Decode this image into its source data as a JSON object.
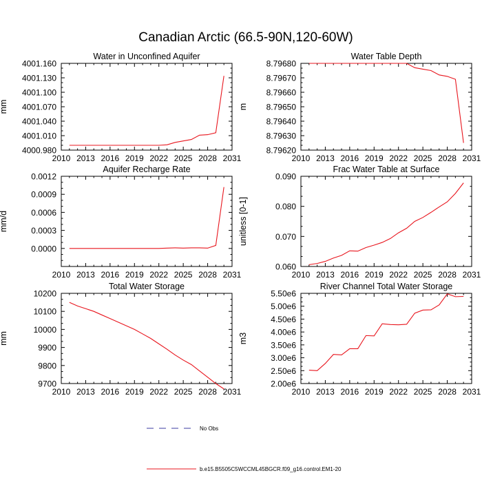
{
  "figure": {
    "title": "Canadian Arctic (66.5-90N,120-60W)"
  },
  "legend": {
    "entries": [
      {
        "label": "No Obs",
        "style": "dashed",
        "color": "#3a3aa0"
      },
      {
        "label": "b.e15.B5505C5WCCML45BGCR.f09_g16.control.EM1-20",
        "style": "solid",
        "color": "#e8141c"
      }
    ]
  },
  "chart_data": [
    {
      "type": "line",
      "title": "Water in Unconfined Aquifer",
      "xlabel": "",
      "ylabel": "mm",
      "xlim": [
        2010,
        2031
      ],
      "ylim": [
        4000.98,
        4001.16
      ],
      "xticks": [
        2010,
        2013,
        2016,
        2019,
        2022,
        2025,
        2028,
        2031
      ],
      "yticks": [
        4000.98,
        4001.01,
        4001.04,
        4001.07,
        4001.1,
        4001.13,
        4001.16
      ],
      "ytick_labels": [
        "4000.980",
        "4001.010",
        "4001.040",
        "4001.070",
        "4001.100",
        "4001.130",
        "4001.160"
      ],
      "series": [
        {
          "color": "#e8141c",
          "x": [
            2011,
            2012,
            2013,
            2014,
            2015,
            2016,
            2017,
            2018,
            2019,
            2020,
            2021,
            2022,
            2023,
            2024,
            2025,
            2026,
            2027,
            2028,
            2029,
            2030
          ],
          "y": [
            4000.99,
            4000.99,
            4000.99,
            4000.99,
            4000.99,
            4000.99,
            4000.99,
            4000.99,
            4000.99,
            4000.99,
            4000.99,
            4000.99,
            4000.991,
            4000.996,
            4000.999,
            4001.002,
            4001.011,
            4001.012,
            4001.016,
            4001.134
          ]
        }
      ]
    },
    {
      "type": "line",
      "title": "Water Table Depth",
      "xlabel": "",
      "ylabel": "m",
      "xlim": [
        2010,
        2031
      ],
      "ylim": [
        8.7962,
        8.7968
      ],
      "xticks": [
        2010,
        2013,
        2016,
        2019,
        2022,
        2025,
        2028,
        2031
      ],
      "yticks": [
        8.7962,
        8.7963,
        8.7964,
        8.7965,
        8.7966,
        8.7967,
        8.7968
      ],
      "ytick_labels": [
        "8.79620",
        "8.79630",
        "8.79640",
        "8.79650",
        "8.79660",
        "8.79670",
        "8.79680"
      ],
      "series": [
        {
          "color": "#e8141c",
          "x": [
            2011,
            2012,
            2013,
            2014,
            2015,
            2016,
            2017,
            2018,
            2019,
            2020,
            2021,
            2022,
            2023,
            2024,
            2025,
            2026,
            2027,
            2028,
            2029,
            2030
          ],
          "y": [
            8.7968,
            8.7968,
            8.7968,
            8.7968,
            8.7968,
            8.7968,
            8.7968,
            8.7968,
            8.7968,
            8.7968,
            8.7968,
            8.7968,
            8.7968,
            8.79677,
            8.79676,
            8.79675,
            8.79672,
            8.79671,
            8.79669,
            8.79625
          ]
        }
      ]
    },
    {
      "type": "line",
      "title": "Aquifer Recharge Rate",
      "xlabel": "",
      "ylabel": "mm/d",
      "xlim": [
        2010,
        2031
      ],
      "ylim": [
        -0.0003,
        0.0012
      ],
      "xticks": [
        2010,
        2013,
        2016,
        2019,
        2022,
        2025,
        2028,
        2031
      ],
      "yticks": [
        0,
        0.0003,
        0.0006,
        0.0009,
        0.0012
      ],
      "ytick_labels": [
        "0.0000",
        "0.0003",
        "0.0006",
        "0.0009",
        "0.0012"
      ],
      "series": [
        {
          "color": "#e8141c",
          "x": [
            2011,
            2012,
            2013,
            2014,
            2015,
            2016,
            2017,
            2018,
            2019,
            2020,
            2021,
            2022,
            2023,
            2024,
            2025,
            2026,
            2027,
            2028,
            2029,
            2030
          ],
          "y": [
            0,
            0,
            0,
            0,
            0,
            0,
            0,
            0,
            0,
            0,
            0,
            0,
            5e-06,
            1e-05,
            5e-06,
            1e-05,
            1e-05,
            5e-06,
            5e-05,
            0.00102
          ]
        }
      ]
    },
    {
      "type": "line",
      "title": "Frac Water Table at Surface",
      "xlabel": "",
      "ylabel": "unitless [0-1]",
      "xlim": [
        2010,
        2031
      ],
      "ylim": [
        0.06,
        0.09
      ],
      "xticks": [
        2010,
        2013,
        2016,
        2019,
        2022,
        2025,
        2028,
        2031
      ],
      "yticks": [
        0.06,
        0.07,
        0.08,
        0.09
      ],
      "ytick_labels": [
        "0.060",
        "0.070",
        "0.080",
        "0.090"
      ],
      "series": [
        {
          "color": "#e8141c",
          "x": [
            2011,
            2012,
            2013,
            2014,
            2015,
            2016,
            2017,
            2018,
            2019,
            2020,
            2021,
            2022,
            2023,
            2024,
            2025,
            2026,
            2027,
            2028,
            2029,
            2030
          ],
          "y": [
            0.0606,
            0.061,
            0.0617,
            0.0628,
            0.0637,
            0.0652,
            0.0651,
            0.0663,
            0.0671,
            0.068,
            0.0693,
            0.0712,
            0.0727,
            0.075,
            0.0763,
            0.078,
            0.0798,
            0.0815,
            0.0843,
            0.0878
          ]
        }
      ]
    },
    {
      "type": "line",
      "title": "Total Water Storage",
      "xlabel": "",
      "ylabel": "mm",
      "xlim": [
        2010,
        2031
      ],
      "ylim": [
        9700,
        10200
      ],
      "xticks": [
        2010,
        2013,
        2016,
        2019,
        2022,
        2025,
        2028,
        2031
      ],
      "yticks": [
        9700,
        9800,
        9900,
        10000,
        10100,
        10200
      ],
      "ytick_labels": [
        "9700",
        "9800",
        "9900",
        "10000",
        "10100",
        "10200"
      ],
      "series": [
        {
          "color": "#e8141c",
          "x": [
            2011,
            2012,
            2013,
            2014,
            2015,
            2016,
            2017,
            2018,
            2019,
            2020,
            2021,
            2022,
            2023,
            2024,
            2025,
            2026,
            2027,
            2028,
            2029,
            2030
          ],
          "y": [
            10150,
            10130,
            10115,
            10100,
            10080,
            10060,
            10040,
            10020,
            10000,
            9975,
            9950,
            9920,
            9890,
            9858,
            9830,
            9805,
            9770,
            9735,
            9700,
            9670
          ]
        }
      ]
    },
    {
      "type": "line",
      "title": "River Channel Total Water Storage",
      "xlabel": "",
      "ylabel": "m3",
      "xlim": [
        2010,
        2031
      ],
      "ylim": [
        2000000,
        5500000
      ],
      "xticks": [
        2010,
        2013,
        2016,
        2019,
        2022,
        2025,
        2028,
        2031
      ],
      "yticks": [
        2000000,
        2500000,
        3000000,
        3500000,
        4000000,
        4500000,
        5000000,
        5500000
      ],
      "ytick_labels": [
        "2.00e6",
        "2.50e6",
        "3.00e6",
        "3.50e6",
        "4.00e6",
        "4.50e6",
        "5.00e6",
        "5.50e6"
      ],
      "series": [
        {
          "color": "#e8141c",
          "x": [
            2011,
            2012,
            2013,
            2014,
            2015,
            2016,
            2017,
            2018,
            2019,
            2020,
            2021,
            2022,
            2023,
            2024,
            2025,
            2026,
            2027,
            2028,
            2029,
            2030
          ],
          "y": [
            2520000,
            2500000,
            2780000,
            3130000,
            3110000,
            3350000,
            3350000,
            3860000,
            3850000,
            4320000,
            4290000,
            4280000,
            4300000,
            4730000,
            4850000,
            4860000,
            5050000,
            5480000,
            5370000,
            5380000
          ]
        }
      ]
    }
  ]
}
